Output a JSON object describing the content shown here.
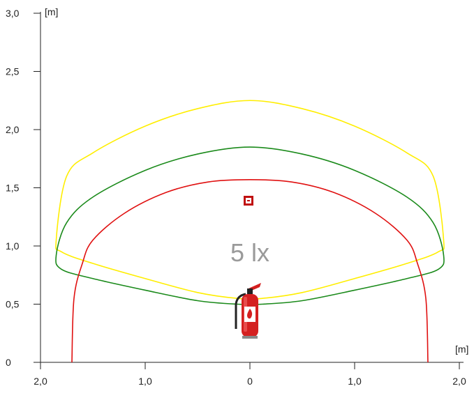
{
  "chart_data": {
    "type": "line",
    "x_unit": "[m]",
    "y_unit": "[m]",
    "x_ticks": [
      "2,0",
      "1,0",
      "0",
      "1,0",
      "2,0"
    ],
    "y_ticks": [
      "0",
      "0,5",
      "1,0",
      "1,5",
      "2,0",
      "2,5",
      "3,0"
    ],
    "xlim": [
      -2.0,
      2.0
    ],
    "ylim": [
      0,
      3.0
    ],
    "grid": false,
    "annotation": "5 lx",
    "series": [
      {
        "color": "#ffee00",
        "x": [
          -1.85,
          -1.75,
          -1.5,
          -1.0,
          -0.5,
          0,
          0.5,
          1.0,
          1.5,
          1.75,
          1.85,
          1.8,
          1.5,
          1.0,
          0.5,
          0.12,
          -0.12,
          -0.5,
          -1.0,
          -1.5,
          -1.8,
          -1.85
        ],
        "y": [
          1.05,
          1.6,
          1.8,
          2.03,
          2.18,
          2.25,
          2.18,
          2.03,
          1.8,
          1.6,
          1.05,
          0.95,
          0.85,
          0.72,
          0.6,
          0.55,
          0.55,
          0.6,
          0.72,
          0.85,
          0.95,
          1.05
        ]
      },
      {
        "color": "#1a8a1a",
        "x": [
          -1.85,
          -1.75,
          -1.5,
          -1.0,
          -0.5,
          0,
          0.5,
          1.0,
          1.5,
          1.75,
          1.85,
          1.8,
          1.5,
          1.0,
          0.5,
          0.12,
          -0.12,
          -0.5,
          -1.0,
          -1.5,
          -1.8,
          -1.85
        ],
        "y": [
          0.92,
          1.2,
          1.42,
          1.65,
          1.79,
          1.85,
          1.79,
          1.65,
          1.42,
          1.2,
          0.92,
          0.8,
          0.72,
          0.62,
          0.53,
          0.5,
          0.5,
          0.53,
          0.62,
          0.72,
          0.8,
          0.92
        ]
      },
      {
        "color": "#e01010",
        "x": [
          -1.7,
          -1.68,
          -1.6,
          -1.5,
          -1.2,
          -0.8,
          -0.4,
          0,
          0.4,
          0.8,
          1.2,
          1.5,
          1.6,
          1.68,
          1.7
        ],
        "y": [
          0.0,
          0.55,
          0.85,
          1.05,
          1.28,
          1.46,
          1.55,
          1.57,
          1.55,
          1.46,
          1.28,
          1.05,
          0.85,
          0.55,
          0.0
        ]
      }
    ]
  }
}
